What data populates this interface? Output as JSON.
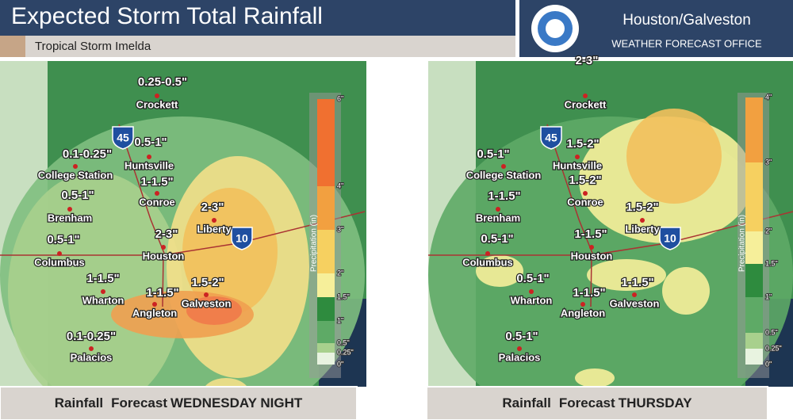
{
  "header": {
    "title": "Expected Storm Total Rainfall",
    "subtitle": "Tropical Storm Imelda",
    "office": "Houston/Galveston",
    "office_sub": "WEATHER FORECAST OFFICE"
  },
  "maps": [
    {
      "caption": {
        "a": "Rainfall",
        "b": "Forecast",
        "c": "WEDNESDAY NIGHT"
      },
      "legend": {
        "title": "Precipitation (in)",
        "ticks": [
          "6\"",
          "4\"",
          "3\"",
          "2\"",
          "1.5\"",
          "1\"",
          "0.5\"",
          "0.25\"",
          "0\""
        ]
      },
      "shields": [
        "45",
        "10"
      ],
      "cities": [
        "Crockett",
        "Huntsville",
        "College Station",
        "Conroe",
        "Brenham",
        "Liberty",
        "Columbus",
        "Houston",
        "Wharton",
        "Galveston",
        "Angleton",
        "Palacios"
      ],
      "amounts": [
        "0.25-0.5\"",
        "0.5-1\"",
        "0.1-0.25\"",
        "1-1.5\"",
        "0.5-1\"",
        "2-3\"",
        "2-3\"",
        "0.5-1\"",
        "1-1.5\"",
        "1-1.5\"",
        "1.5-2\"",
        "0.1-0.25\""
      ]
    },
    {
      "caption": {
        "a": "Rainfall",
        "b": "Forecast",
        "c": "THURSDAY"
      },
      "legend": {
        "title": "Precipitation (in)",
        "ticks": [
          "4\"",
          "3\"",
          "2\"",
          "1.5\"",
          "1\"",
          "0.5\"",
          "0.25\"",
          "0\""
        ]
      },
      "shields": [
        "45",
        "10"
      ],
      "cities": [
        "Crockett",
        "Huntsville",
        "College Station",
        "Conroe",
        "Brenham",
        "Liberty",
        "Columbus",
        "Houston",
        "Wharton",
        "Galveston",
        "Angleton",
        "Palacios"
      ],
      "amounts": [
        "2-3\"",
        "0.5-1\"",
        "1.5-2\"",
        "1.5-2\"",
        "1-1.5\"",
        "1.5-2\"",
        "0.5-1\"",
        "1-1.5\"",
        "0.5-1\"",
        "1-1.5\"",
        "1-1.5\"",
        "0.5-1\""
      ]
    }
  ]
}
